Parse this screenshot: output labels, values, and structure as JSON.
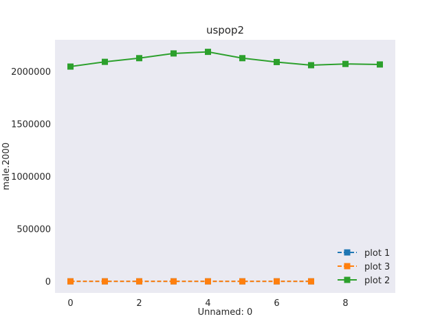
{
  "chart_data": {
    "type": "line",
    "title": "uspop2",
    "xlabel": "Unnamed: 0",
    "ylabel": "male.2000",
    "xlim": [
      -0.45,
      9.45
    ],
    "ylim": [
      -110000,
      2300000
    ],
    "xticks": [
      0,
      2,
      4,
      6,
      8
    ],
    "yticks": [
      0,
      500000,
      1000000,
      1500000,
      2000000
    ],
    "grid": false,
    "legend_position": "lower-right",
    "background": "#eaeaf2",
    "series": [
      {
        "name": "plot 1",
        "color": "#1f77b4",
        "linestyle": "dashed",
        "marker": "square",
        "x": [
          0,
          1,
          2,
          3,
          4,
          5,
          6,
          7
        ],
        "y": [
          0,
          0,
          0,
          0,
          0,
          0,
          0,
          0
        ]
      },
      {
        "name": "plot 3",
        "color": "#ff7f0e",
        "linestyle": "dashed",
        "marker": "square",
        "x": [
          0,
          1,
          2,
          3,
          4,
          5,
          6,
          7
        ],
        "y": [
          0,
          0,
          0,
          0,
          0,
          0,
          0,
          0
        ]
      },
      {
        "name": "plot 2",
        "color": "#2ca02c",
        "linestyle": "solid",
        "marker": "square",
        "x": [
          0,
          1,
          2,
          3,
          4,
          5,
          6,
          7,
          8,
          9
        ],
        "y": [
          2045000,
          2090000,
          2125000,
          2170000,
          2185000,
          2125000,
          2088000,
          2058000,
          2070000,
          2065000
        ]
      }
    ]
  }
}
